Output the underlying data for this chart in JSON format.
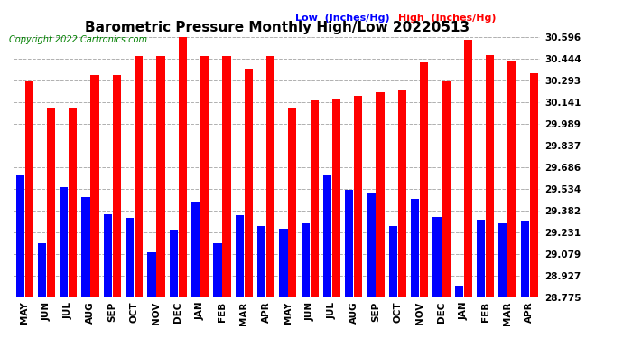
{
  "title": "Barometric Pressure Monthly High/Low 20220513",
  "copyright": "Copyright 2022 Cartronics.com",
  "legend_low": "Low  (Inches/Hg)",
  "legend_high": "High  (Inches/Hg)",
  "months": [
    "MAY",
    "JUN",
    "JUL",
    "AUG",
    "SEP",
    "OCT",
    "NOV",
    "DEC",
    "JAN",
    "FEB",
    "MAR",
    "APR",
    "MAY",
    "JUN",
    "JUL",
    "AUG",
    "SEP",
    "OCT",
    "NOV",
    "DEC",
    "JAN",
    "FEB",
    "MAR",
    "APR"
  ],
  "high_values": [
    30.285,
    30.095,
    30.095,
    30.33,
    30.33,
    30.46,
    30.46,
    30.62,
    30.46,
    30.46,
    30.375,
    30.46,
    30.095,
    30.15,
    30.165,
    30.185,
    30.21,
    30.22,
    30.415,
    30.285,
    30.575,
    30.47,
    30.43,
    30.34
  ],
  "low_values": [
    29.63,
    29.155,
    29.545,
    29.475,
    29.355,
    29.33,
    29.09,
    29.245,
    29.445,
    29.155,
    29.35,
    29.275,
    29.255,
    29.295,
    29.63,
    29.525,
    29.505,
    29.275,
    29.465,
    29.335,
    28.855,
    29.32,
    29.295,
    29.31
  ],
  "ylim_min": 28.775,
  "ylim_max": 30.596,
  "yticks": [
    28.775,
    28.927,
    29.079,
    29.231,
    29.382,
    29.534,
    29.686,
    29.837,
    29.989,
    30.141,
    30.293,
    30.444,
    30.596
  ],
  "bar_color_high": "#ff0000",
  "bar_color_low": "#0000ff",
  "background_color": "#ffffff",
  "grid_color": "#b0b0b0",
  "title_fontsize": 11,
  "tick_fontsize": 7.5,
  "copyright_fontsize": 7,
  "legend_fontsize": 8
}
